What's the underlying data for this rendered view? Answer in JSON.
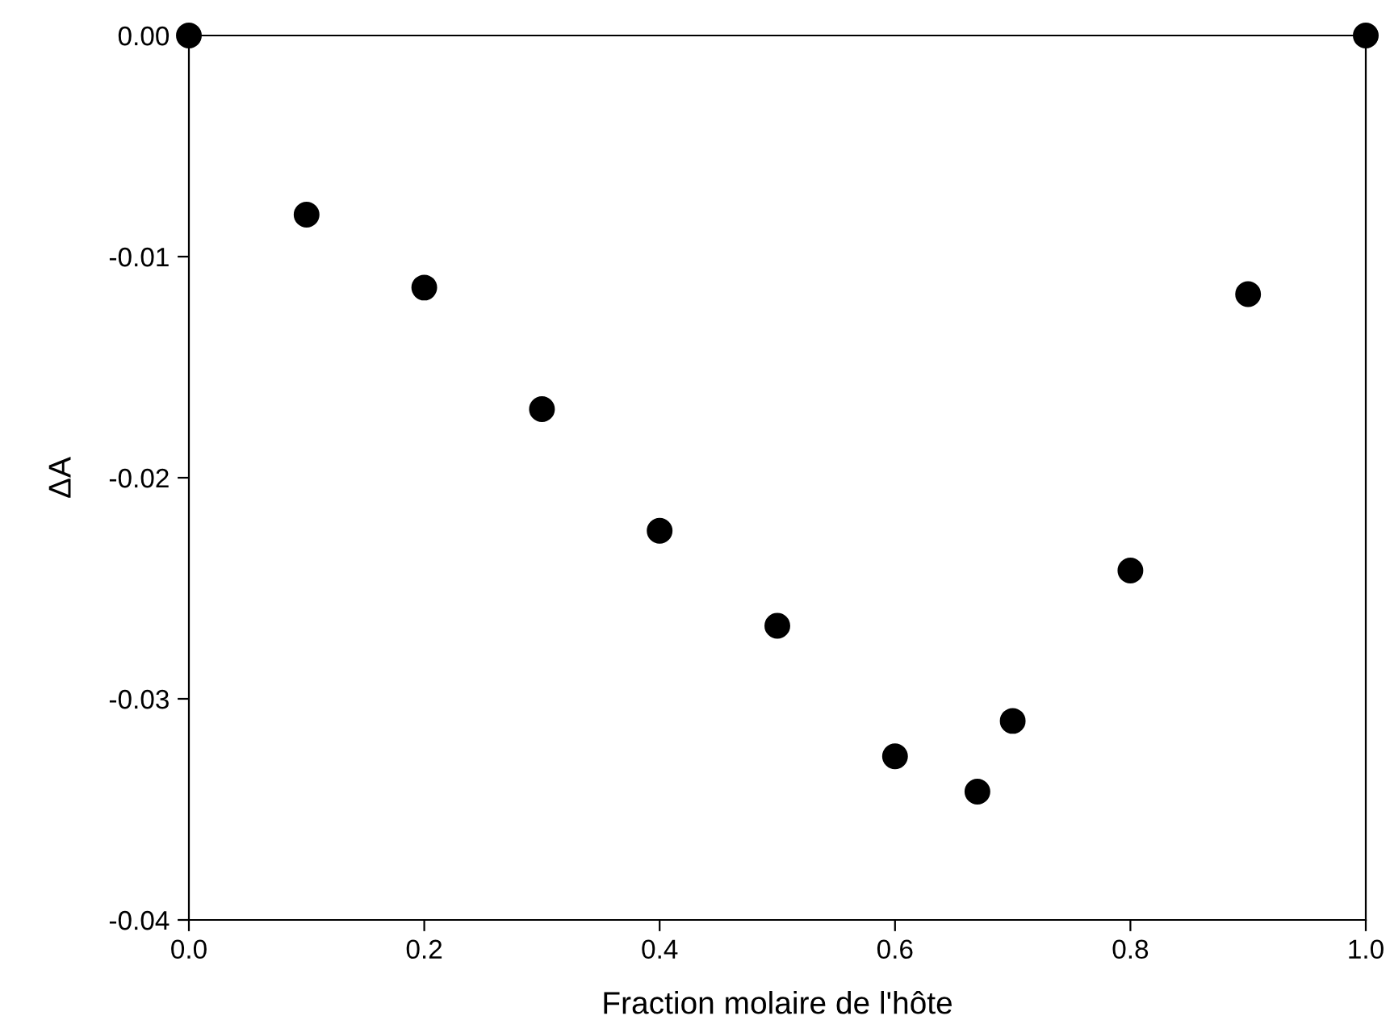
{
  "chart_data": {
    "type": "scatter",
    "xlabel": "Fraction molaire de l'hôte",
    "ylabel": "ΔA",
    "x": [
      0,
      0.1,
      0.2,
      0.3,
      0.4,
      0.5,
      0.6,
      0.67,
      0.7,
      0.8,
      0.9,
      1.0
    ],
    "series": [
      {
        "color": "#000000",
        "values": [
          0,
          -0.0081,
          -0.0114,
          -0.0169,
          -0.0224,
          -0.0267,
          -0.0326,
          -0.0342,
          -0.031,
          -0.0242,
          -0.0117,
          0
        ]
      }
    ],
    "marker": "circle",
    "xlim": [
      0,
      1.0
    ],
    "xticks": [
      {
        "value": 0,
        "label": "0.0"
      },
      {
        "value": 0.2,
        "label": "0.2"
      },
      {
        "value": 0.4,
        "label": "0.4"
      },
      {
        "value": 0.6,
        "label": "0.6"
      },
      {
        "value": 0.8,
        "label": "0.8"
      },
      {
        "value": 1.0,
        "label": "1.0"
      }
    ],
    "ylim": [
      -0.04,
      0
    ],
    "yticks": [
      {
        "value": -0.04,
        "label": "-0.04"
      },
      {
        "value": -0.03,
        "label": "-0.03"
      },
      {
        "value": -0.02,
        "label": "-0.02"
      },
      {
        "value": -0.01,
        "label": "-0.01"
      },
      {
        "value": 0,
        "label": "0.00"
      }
    ],
    "grid": false,
    "legend": false
  }
}
